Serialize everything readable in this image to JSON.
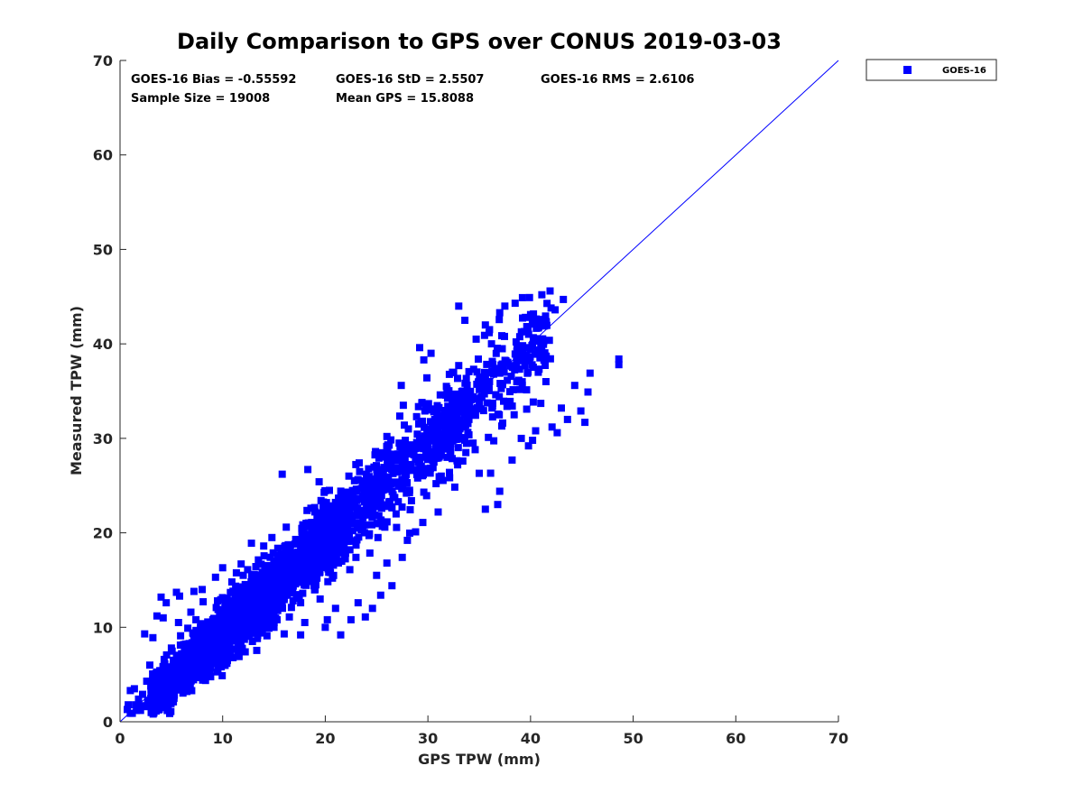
{
  "chart_data": {
    "type": "scatter",
    "title": "Daily Comparison to GPS over CONUS 2019-03-03",
    "xlabel": "GPS TPW (mm)",
    "ylabel": "Measured TPW (mm)",
    "xlim": [
      0,
      70
    ],
    "ylim": [
      0,
      70
    ],
    "xticks": [
      0,
      10,
      20,
      30,
      40,
      50,
      60,
      70
    ],
    "yticks": [
      0,
      10,
      20,
      30,
      40,
      50,
      60,
      70
    ],
    "tick_labels_x": [
      "0",
      "10",
      "20",
      "30",
      "40",
      "50",
      "60",
      "70"
    ],
    "tick_labels_y": [
      "0",
      "10",
      "20",
      "30",
      "40",
      "50",
      "60",
      "70"
    ],
    "grid": false,
    "legend": {
      "location": "outside-top-right",
      "entries": [
        {
          "label": "GOES-16",
          "marker": "square",
          "color": "#0000ff"
        }
      ]
    },
    "annotations": [
      "GOES-16 Bias = -0.55592",
      "GOES-16 StD = 2.5507",
      "GOES-16 RMS = 2.6106",
      "Sample Size = 19008",
      "Mean GPS = 15.8088"
    ],
    "reference_line": {
      "name": "one-to-one line",
      "x": [
        0,
        70
      ],
      "y": [
        0,
        70
      ],
      "color": "#0000ff"
    },
    "series": [
      {
        "name": "GOES-16",
        "color": "#0000ff",
        "marker": "square",
        "sample_size": 19008,
        "trend": {
          "relation": "measured ≈ gps - 0.56",
          "bias": -0.55592,
          "std": 2.5507,
          "rms": 2.6106,
          "x_range": [
            0.5,
            48.5
          ]
        },
        "points": [
          [
            0.7,
            1.3
          ],
          [
            1.2,
            0.9
          ],
          [
            1.5,
            1.8
          ],
          [
            2.0,
            1.2
          ],
          [
            1.0,
            3.3
          ],
          [
            1.4,
            3.5
          ],
          [
            2.5,
            1.6
          ],
          [
            3.0,
            2.5
          ],
          [
            4.0,
            13.2
          ],
          [
            4.5,
            12.6
          ],
          [
            5.8,
            13.3
          ],
          [
            2.4,
            9.3
          ],
          [
            2.9,
            6.0
          ],
          [
            3.2,
            8.9
          ],
          [
            3.6,
            11.2
          ],
          [
            4.2,
            11.0
          ],
          [
            5.5,
            13.7
          ],
          [
            7.2,
            13.8
          ],
          [
            8.0,
            14.0
          ],
          [
            9.3,
            15.3
          ],
          [
            10.0,
            16.3
          ],
          [
            11.8,
            16.7
          ],
          [
            12.8,
            18.9
          ],
          [
            14.0,
            18.6
          ],
          [
            15.6,
            17.6
          ],
          [
            17.3,
            19.1
          ],
          [
            15.8,
            26.2
          ],
          [
            18.3,
            26.7
          ],
          [
            19.4,
            25.4
          ],
          [
            19.2,
            21.6
          ],
          [
            21.6,
            22.6
          ],
          [
            22.0,
            24.3
          ],
          [
            16.0,
            9.3
          ],
          [
            16.5,
            11.1
          ],
          [
            17.6,
            9.2
          ],
          [
            18.0,
            10.5
          ],
          [
            19.5,
            13.0
          ],
          [
            20.2,
            10.8
          ],
          [
            22.5,
            10.8
          ],
          [
            23.2,
            12.6
          ],
          [
            23.9,
            11.1
          ],
          [
            24.6,
            12.0
          ],
          [
            25.4,
            13.4
          ],
          [
            26.5,
            14.4
          ],
          [
            20.0,
            10.0
          ],
          [
            21.5,
            9.2
          ],
          [
            21.0,
            12.0
          ],
          [
            25.0,
            15.5
          ],
          [
            26.0,
            16.8
          ],
          [
            27.5,
            17.4
          ],
          [
            28.0,
            19.2
          ],
          [
            28.8,
            20.1
          ],
          [
            29.5,
            21.1
          ],
          [
            31.0,
            22.2
          ],
          [
            31.3,
            26.0
          ],
          [
            32.9,
            27.2
          ],
          [
            33.7,
            28.5
          ],
          [
            34.4,
            29.5
          ],
          [
            35.0,
            26.3
          ],
          [
            37.0,
            24.4
          ],
          [
            35.6,
            22.5
          ],
          [
            36.8,
            23.0
          ],
          [
            38.2,
            27.7
          ],
          [
            39.1,
            30.0
          ],
          [
            39.8,
            29.2
          ],
          [
            40.2,
            29.8
          ],
          [
            40.5,
            30.8
          ],
          [
            41.0,
            33.7
          ],
          [
            41.5,
            36.0
          ],
          [
            42.1,
            31.2
          ],
          [
            42.6,
            30.6
          ],
          [
            43.0,
            33.2
          ],
          [
            43.6,
            32.0
          ],
          [
            44.3,
            35.6
          ],
          [
            44.9,
            32.9
          ],
          [
            45.3,
            31.7
          ],
          [
            45.6,
            34.9
          ],
          [
            45.8,
            36.9
          ],
          [
            48.6,
            37.8
          ],
          [
            48.6,
            38.4
          ],
          [
            27.6,
            33.5
          ],
          [
            30.3,
            39.0
          ],
          [
            29.6,
            38.3
          ],
          [
            33.0,
            37.7
          ],
          [
            33.6,
            42.5
          ],
          [
            34.7,
            40.5
          ],
          [
            36.0,
            41.5
          ],
          [
            37.0,
            43.3
          ],
          [
            37.5,
            44.0
          ],
          [
            38.5,
            44.3
          ],
          [
            39.9,
            44.9
          ],
          [
            41.1,
            45.2
          ],
          [
            41.9,
            45.6
          ],
          [
            42.4,
            43.6
          ],
          [
            43.2,
            44.7
          ],
          [
            40.0,
            43.1
          ],
          [
            42.0,
            43.8
          ],
          [
            33.0,
            44.0
          ],
          [
            35.6,
            42.0
          ],
          [
            39.5,
            42.8
          ],
          [
            40.8,
            41.8
          ],
          [
            41.4,
            42.6
          ],
          [
            36.2,
            40.0
          ],
          [
            38.6,
            40.2
          ],
          [
            39.4,
            41.3
          ],
          [
            40.2,
            42.1
          ],
          [
            29.2,
            39.6
          ],
          [
            27.4,
            35.6
          ],
          [
            29.9,
            36.4
          ],
          [
            31.2,
            34.6
          ],
          [
            32.4,
            37.0
          ],
          [
            31.8,
            35.5
          ],
          [
            29.8,
            33.4
          ],
          [
            24.8,
            25.1
          ],
          [
            24.0,
            26.2
          ],
          [
            26.5,
            28.0
          ],
          [
            27.2,
            29.5
          ],
          [
            28.1,
            31.0
          ],
          [
            28.9,
            32.3
          ],
          [
            30.1,
            33.0
          ],
          [
            31.4,
            32.1
          ],
          [
            32.5,
            33.8
          ],
          [
            33.8,
            35.0
          ],
          [
            35.0,
            36.0
          ],
          [
            36.4,
            36.8
          ],
          [
            37.6,
            38.2
          ],
          [
            38.7,
            38.9
          ],
          [
            39.6,
            39.6
          ],
          [
            40.5,
            40.3
          ],
          [
            34.2,
            33.0
          ],
          [
            35.5,
            34.7
          ],
          [
            36.3,
            33.4
          ],
          [
            33.0,
            30.3
          ],
          [
            34.0,
            32.0
          ],
          [
            31.3,
            28.2
          ],
          [
            30.5,
            26.9
          ],
          [
            29.0,
            25.8
          ],
          [
            27.9,
            24.2
          ],
          [
            26.2,
            22.8
          ],
          [
            25.1,
            21.0
          ],
          [
            23.5,
            20.4
          ],
          [
            22.4,
            18.2
          ],
          [
            21.0,
            17.6
          ],
          [
            20.0,
            18.5
          ],
          [
            19.2,
            16.2
          ],
          [
            18.2,
            15.3
          ],
          [
            17.1,
            14.6
          ],
          [
            16.3,
            13.4
          ],
          [
            15.2,
            12.6
          ],
          [
            14.4,
            11.8
          ],
          [
            13.3,
            11.2
          ],
          [
            12.5,
            10.0
          ],
          [
            11.4,
            9.6
          ],
          [
            10.5,
            8.8
          ],
          [
            9.6,
            8.0
          ],
          [
            8.8,
            7.4
          ],
          [
            7.9,
            6.7
          ],
          [
            7.1,
            6.0
          ],
          [
            6.3,
            5.3
          ],
          [
            5.5,
            4.7
          ],
          [
            4.8,
            4.0
          ],
          [
            4.0,
            3.3
          ],
          [
            3.4,
            2.8
          ],
          [
            2.7,
            2.2
          ],
          [
            2.1,
            1.7
          ],
          [
            1.6,
            1.2
          ],
          [
            1.0,
            0.9
          ],
          [
            0.8,
            1.8
          ],
          [
            3.8,
            4.6
          ],
          [
            4.6,
            5.5
          ],
          [
            5.3,
            6.4
          ],
          [
            6.0,
            7.2
          ],
          [
            6.8,
            8.0
          ],
          [
            7.6,
            8.9
          ],
          [
            8.3,
            9.7
          ],
          [
            9.1,
            10.6
          ],
          [
            9.9,
            11.3
          ],
          [
            10.7,
            12.2
          ],
          [
            11.6,
            13.0
          ],
          [
            12.4,
            13.9
          ],
          [
            13.2,
            14.7
          ],
          [
            14.0,
            15.6
          ],
          [
            14.9,
            16.4
          ],
          [
            15.7,
            17.3
          ],
          [
            16.6,
            18.2
          ],
          [
            17.4,
            19.0
          ],
          [
            18.3,
            19.8
          ],
          [
            19.1,
            20.7
          ],
          [
            20.0,
            21.4
          ],
          [
            20.9,
            22.3
          ],
          [
            21.8,
            23.2
          ],
          [
            22.7,
            24.0
          ],
          [
            23.6,
            24.9
          ],
          [
            24.5,
            25.7
          ],
          [
            25.5,
            26.6
          ],
          [
            26.4,
            27.4
          ],
          [
            27.3,
            28.3
          ],
          [
            28.2,
            29.1
          ],
          [
            29.2,
            30.0
          ],
          [
            30.1,
            30.9
          ],
          [
            31.0,
            31.8
          ],
          [
            32.0,
            32.6
          ],
          [
            33.0,
            33.5
          ],
          [
            34.0,
            34.3
          ],
          [
            35.0,
            35.2
          ],
          [
            36.0,
            36.0
          ],
          [
            37.0,
            36.9
          ],
          [
            38.0,
            37.7
          ],
          [
            39.0,
            38.6
          ],
          [
            40.0,
            39.4
          ],
          [
            41.0,
            40.3
          ],
          [
            8.1,
            12.7
          ],
          [
            6.9,
            11.6
          ],
          [
            5.7,
            10.5
          ],
          [
            10.9,
            14.8
          ],
          [
            12.0,
            15.5
          ],
          [
            13.5,
            17.0
          ],
          [
            9.5,
            12.8
          ],
          [
            14.8,
            19.5
          ],
          [
            16.2,
            20.6
          ],
          [
            18.6,
            22.6
          ],
          [
            20.4,
            24.5
          ],
          [
            22.3,
            26.0
          ],
          [
            23.3,
            27.4
          ],
          [
            24.9,
            28.6
          ],
          [
            26.0,
            30.2
          ],
          [
            27.7,
            31.4
          ],
          [
            11.2,
            7.7
          ],
          [
            12.9,
            8.5
          ],
          [
            14.5,
            9.9
          ],
          [
            15.3,
            10.8
          ],
          [
            17.8,
            13.6
          ],
          [
            18.9,
            14.4
          ],
          [
            20.5,
            15.8
          ],
          [
            21.6,
            17.0
          ],
          [
            23.0,
            18.7
          ],
          [
            24.3,
            19.9
          ],
          [
            25.8,
            20.6
          ],
          [
            26.9,
            22.0
          ],
          [
            28.4,
            23.4
          ],
          [
            29.6,
            24.3
          ],
          [
            30.8,
            25.2
          ],
          [
            32.1,
            26.4
          ],
          [
            33.4,
            27.6
          ],
          [
            34.6,
            28.8
          ],
          [
            35.9,
            30.1
          ],
          [
            37.2,
            31.3
          ],
          [
            38.4,
            32.5
          ],
          [
            3.0,
            3.8
          ],
          [
            3.5,
            5.1
          ],
          [
            4.3,
            6.6
          ],
          [
            5.0,
            7.8
          ],
          [
            5.9,
            9.1
          ],
          [
            6.6,
            9.9
          ],
          [
            7.4,
            10.8
          ],
          [
            2.2,
            2.9
          ],
          [
            1.8,
            2.4
          ],
          [
            2.6,
            4.3
          ],
          [
            4.9,
            3.6
          ],
          [
            6.1,
            4.6
          ],
          [
            7.3,
            5.7
          ],
          [
            8.6,
            6.3
          ],
          [
            9.8,
            7.2
          ],
          [
            10.3,
            6.6
          ],
          [
            11.6,
            6.9
          ],
          [
            12.2,
            7.4
          ],
          [
            13.7,
            9.4
          ],
          [
            15.0,
            10.0
          ],
          [
            16.7,
            12.1
          ],
          [
            17.6,
            12.6
          ],
          [
            19.0,
            14.0
          ],
          [
            20.7,
            15.2
          ]
        ]
      }
    ]
  }
}
